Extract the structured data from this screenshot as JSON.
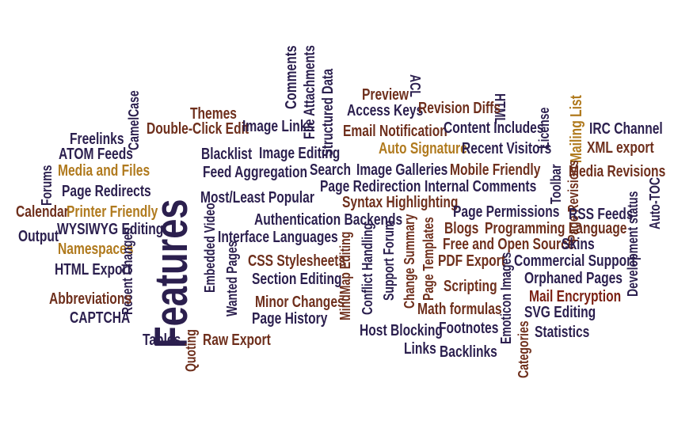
{
  "title": "Features",
  "colors": {
    "navy": "#2b1f4e",
    "brown": "#6e2f1c",
    "gold": "#b07a1e",
    "darkred": "#7a1f12"
  },
  "words": [
    {
      "text": "Features",
      "c": "navy",
      "s": 58,
      "rot": -90,
      "name": "word-features"
    },
    {
      "text": "Comments",
      "c": "navy",
      "s": 20,
      "rot": -90,
      "name": "word-comments"
    },
    {
      "text": "File Attachments",
      "c": "navy",
      "s": 19,
      "rot": -90,
      "name": "word-file-attachments"
    },
    {
      "text": "Structured Data",
      "c": "navy",
      "s": 19,
      "rot": -90,
      "name": "word-structured-data"
    },
    {
      "text": "ACL",
      "c": "navy",
      "s": 18,
      "rot": 90,
      "name": "word-acl"
    },
    {
      "text": "HTML",
      "c": "navy",
      "s": 18,
      "rot": 90,
      "name": "word-html"
    },
    {
      "text": "Preview",
      "c": "brown",
      "s": 20,
      "rot": 0,
      "name": "word-preview"
    },
    {
      "text": "Access Keys",
      "c": "navy",
      "s": 20,
      "rot": 0,
      "name": "word-access-keys"
    },
    {
      "text": "Revision Diffs",
      "c": "brown",
      "s": 20,
      "rot": 0,
      "name": "word-revision-diffs"
    },
    {
      "text": "License",
      "c": "navy",
      "s": 18,
      "rot": -90,
      "name": "word-license"
    },
    {
      "text": "Mailing List",
      "c": "gold",
      "s": 20,
      "rot": -90,
      "name": "word-mailing-list"
    },
    {
      "text": "CamelCase",
      "c": "navy",
      "s": 18,
      "rot": -90,
      "name": "word-camelcase"
    },
    {
      "text": "Themes",
      "c": "brown",
      "s": 20,
      "rot": 0,
      "name": "word-themes"
    },
    {
      "text": "Double-Click Edit",
      "c": "brown",
      "s": 20,
      "rot": 0,
      "name": "word-double-click-edit"
    },
    {
      "text": "Image Links",
      "c": "navy",
      "s": 20,
      "rot": 0,
      "name": "word-image-links"
    },
    {
      "text": "Email Notification",
      "c": "brown",
      "s": 20,
      "rot": 0,
      "name": "word-email-notification"
    },
    {
      "text": "Content Includes",
      "c": "navy",
      "s": 20,
      "rot": 0,
      "name": "word-content-includes"
    },
    {
      "text": "IRC Channel",
      "c": "navy",
      "s": 20,
      "rot": 0,
      "name": "word-irc-channel"
    },
    {
      "text": "Freelinks",
      "c": "navy",
      "s": 20,
      "rot": 0,
      "name": "word-freelinks"
    },
    {
      "text": "ATOM Feeds",
      "c": "navy",
      "s": 20,
      "rot": 0,
      "name": "word-atom-feeds"
    },
    {
      "text": "Blacklist",
      "c": "navy",
      "s": 20,
      "rot": 0,
      "name": "word-blacklist"
    },
    {
      "text": "Image Editing",
      "c": "navy",
      "s": 20,
      "rot": 0,
      "name": "word-image-editing"
    },
    {
      "text": "Auto Signature",
      "c": "gold",
      "s": 20,
      "rot": 0,
      "name": "word-auto-signature"
    },
    {
      "text": "Recent Visitors",
      "c": "navy",
      "s": 20,
      "rot": 0,
      "name": "word-recent-visitors"
    },
    {
      "text": "XML export",
      "c": "brown",
      "s": 20,
      "rot": 0,
      "name": "word-xml-export"
    },
    {
      "text": "Toolbar",
      "c": "navy",
      "s": 18,
      "rot": -90,
      "name": "word-toolbar"
    },
    {
      "text": "Page Revisions",
      "c": "brown",
      "s": 18,
      "rot": -90,
      "name": "word-page-revisions"
    },
    {
      "text": "Forums",
      "c": "navy",
      "s": 18,
      "rot": -90,
      "name": "word-forums"
    },
    {
      "text": "Media and Files",
      "c": "gold",
      "s": 20,
      "rot": 0,
      "name": "word-media-and-files"
    },
    {
      "text": "Feed Aggregation",
      "c": "navy",
      "s": 20,
      "rot": 0,
      "name": "word-feed-aggregation"
    },
    {
      "text": "Search",
      "c": "navy",
      "s": 20,
      "rot": 0,
      "name": "word-search"
    },
    {
      "text": "Image Galleries",
      "c": "navy",
      "s": 20,
      "rot": 0,
      "name": "word-image-galleries"
    },
    {
      "text": "Mobile Friendly",
      "c": "brown",
      "s": 20,
      "rot": 0,
      "name": "word-mobile-friendly"
    },
    {
      "text": "Media Revisions",
      "c": "brown",
      "s": 20,
      "rot": 0,
      "name": "word-media-revisions"
    },
    {
      "text": "Page Redirects",
      "c": "navy",
      "s": 20,
      "rot": 0,
      "name": "word-page-redirects"
    },
    {
      "text": "Page Redirection",
      "c": "navy",
      "s": 20,
      "rot": 0,
      "name": "word-page-redirection"
    },
    {
      "text": "Internal Comments",
      "c": "navy",
      "s": 20,
      "rot": 0,
      "name": "word-internal-comments"
    },
    {
      "text": "Most/Least Popular",
      "c": "navy",
      "s": 20,
      "rot": 0,
      "name": "word-most-least-popular"
    },
    {
      "text": "Syntax Highlighting",
      "c": "brown",
      "s": 20,
      "rot": 0,
      "name": "word-syntax-highlighting"
    },
    {
      "text": "Calendar",
      "c": "brown",
      "s": 20,
      "rot": 0,
      "name": "word-calendar"
    },
    {
      "text": "Printer Friendly",
      "c": "gold",
      "s": 20,
      "rot": 0,
      "name": "word-printer-friendly"
    },
    {
      "text": "Page Permissions",
      "c": "navy",
      "s": 20,
      "rot": 0,
      "name": "word-page-permissions"
    },
    {
      "text": "RSS Feeds",
      "c": "navy",
      "s": 20,
      "rot": 0,
      "name": "word-rss-feeds"
    },
    {
      "text": "Auto-TOC",
      "c": "navy",
      "s": 18,
      "rot": -90,
      "name": "word-auto-toc"
    },
    {
      "text": "Authentication Backends",
      "c": "navy",
      "s": 20,
      "rot": 0,
      "name": "word-authentication-backends"
    },
    {
      "text": "Blogs",
      "c": "brown",
      "s": 20,
      "rot": 0,
      "name": "word-blogs"
    },
    {
      "text": "Programming Language",
      "c": "brown",
      "s": 20,
      "rot": 0,
      "name": "word-programming-language"
    },
    {
      "text": "WYSIWYG Editing",
      "c": "navy",
      "s": 20,
      "rot": 0,
      "name": "word-wysiwyg-editing"
    },
    {
      "text": "Output",
      "c": "navy",
      "s": 20,
      "rot": 0,
      "name": "word-output"
    },
    {
      "text": "Embedded Video",
      "c": "navy",
      "s": 18,
      "rot": -90,
      "name": "word-embedded-video"
    },
    {
      "text": "Interface Languages",
      "c": "navy",
      "s": 20,
      "rot": 0,
      "name": "word-interface-languages"
    },
    {
      "text": "Free and Open Source",
      "c": "brown",
      "s": 20,
      "rot": 0,
      "name": "word-free-and-open-source"
    },
    {
      "text": "Skins",
      "c": "navy",
      "s": 20,
      "rot": 0,
      "name": "word-skins"
    },
    {
      "text": "Development status",
      "c": "navy",
      "s": 18,
      "rot": -90,
      "name": "word-development-status"
    },
    {
      "text": "Namespaces",
      "c": "gold",
      "s": 20,
      "rot": 0,
      "name": "word-namespaces"
    },
    {
      "text": "CSS Stylesheets",
      "c": "brown",
      "s": 20,
      "rot": 0,
      "name": "word-css-stylesheets"
    },
    {
      "text": "PDF Export",
      "c": "brown",
      "s": 20,
      "rot": 0,
      "name": "word-pdf-export"
    },
    {
      "text": "Commercial Support",
      "c": "navy",
      "s": 20,
      "rot": 0,
      "name": "word-commercial-support"
    },
    {
      "text": "Change Summary",
      "c": "brown",
      "s": 18,
      "rot": -90,
      "name": "word-change-summary"
    },
    {
      "text": "Page Templates",
      "c": "brown",
      "s": 18,
      "rot": -90,
      "name": "word-page-templates"
    },
    {
      "text": "Support Forum",
      "c": "navy",
      "s": 18,
      "rot": -90,
      "name": "word-support-forum"
    },
    {
      "text": "Conflict Handling",
      "c": "navy",
      "s": 18,
      "rot": -90,
      "name": "word-conflict-handling"
    },
    {
      "text": "MindMap Editing",
      "c": "brown",
      "s": 18,
      "rot": -90,
      "name": "word-mindmap-editing"
    },
    {
      "text": "HTML Export",
      "c": "navy",
      "s": 20,
      "rot": 0,
      "name": "word-html-export"
    },
    {
      "text": "Section Editing",
      "c": "navy",
      "s": 20,
      "rot": 0,
      "name": "word-section-editing"
    },
    {
      "text": "Orphaned Pages",
      "c": "navy",
      "s": 20,
      "rot": 0,
      "name": "word-orphaned-pages"
    },
    {
      "text": "Recent Changes",
      "c": "navy",
      "s": 18,
      "rot": -90,
      "name": "word-recent-changes"
    },
    {
      "text": "Wanted Pages",
      "c": "navy",
      "s": 18,
      "rot": -90,
      "name": "word-wanted-pages"
    },
    {
      "text": "Scripting",
      "c": "brown",
      "s": 20,
      "rot": 0,
      "name": "word-scripting"
    },
    {
      "text": "Emoticon Images",
      "c": "navy",
      "s": 18,
      "rot": -90,
      "name": "word-emoticon-images"
    },
    {
      "text": "Mail Encryption",
      "c": "darkred",
      "s": 20,
      "rot": 0,
      "name": "word-mail-encryption"
    },
    {
      "text": "Abbreviations",
      "c": "brown",
      "s": 20,
      "rot": 0,
      "name": "word-abbreviations"
    },
    {
      "text": "Minor Changes",
      "c": "brown",
      "s": 20,
      "rot": 0,
      "name": "word-minor-changes"
    },
    {
      "text": "Math formulas",
      "c": "brown",
      "s": 20,
      "rot": 0,
      "name": "word-math-formulas"
    },
    {
      "text": "SVG Editing",
      "c": "navy",
      "s": 20,
      "rot": 0,
      "name": "word-svg-editing"
    },
    {
      "text": "CAPTCHA",
      "c": "navy",
      "s": 20,
      "rot": 0,
      "name": "word-captcha"
    },
    {
      "text": "Page History",
      "c": "navy",
      "s": 20,
      "rot": 0,
      "name": "word-page-history"
    },
    {
      "text": "Host Blocking",
      "c": "navy",
      "s": 20,
      "rot": 0,
      "name": "word-host-blocking"
    },
    {
      "text": "Footnotes",
      "c": "navy",
      "s": 20,
      "rot": 0,
      "name": "word-footnotes"
    },
    {
      "text": "Statistics",
      "c": "navy",
      "s": 20,
      "rot": 0,
      "name": "word-statistics"
    },
    {
      "text": "Tables",
      "c": "navy",
      "s": 20,
      "rot": 0,
      "name": "word-tables"
    },
    {
      "text": "Raw Export",
      "c": "brown",
      "s": 20,
      "rot": 0,
      "name": "word-raw-export"
    },
    {
      "text": "Links",
      "c": "navy",
      "s": 20,
      "rot": 0,
      "name": "word-links"
    },
    {
      "text": "Backlinks",
      "c": "navy",
      "s": 20,
      "rot": 0,
      "name": "word-backlinks"
    },
    {
      "text": "Quoting",
      "c": "brown",
      "s": 18,
      "rot": -90,
      "name": "word-quoting"
    },
    {
      "text": "Categories",
      "c": "brown",
      "s": 18,
      "rot": -90,
      "name": "word-categories"
    }
  ]
}
